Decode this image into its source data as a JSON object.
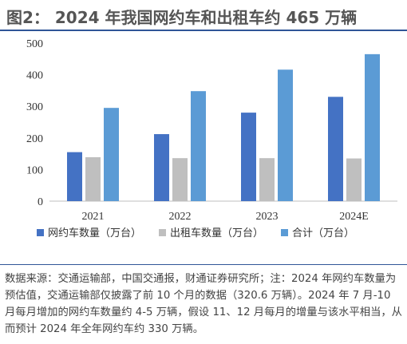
{
  "figure_title": "图2： 2024 年我国网约车和出租车约 465 万辆",
  "note": "数据来源：交通运输部，中国交通报，财通证券研究所；注：2024 年网约车数量为预估值，交通运输部仅披露了前 10 个月的数据（320.6 万辆）。2024 年 7 月-10 月每月增加的网约车数量约 4-5 万辆，假设 11、12 月每月的增量与该水平相当，从而预计 2024 年全年网约车约 330 万辆。",
  "colors": {
    "series1": "#4472c4",
    "series2": "#bfbfbf",
    "series3": "#5b9bd5",
    "title_rule": "#2f5597"
  },
  "chart_data": {
    "type": "bar",
    "title": "",
    "xlabel": "",
    "ylabel": "",
    "categories": [
      "2021",
      "2022",
      "2023",
      "2024E"
    ],
    "series": [
      {
        "name": "网约车数量（万台）",
        "values": [
          155,
          212,
          280,
          330
        ]
      },
      {
        "name": "出租车数量（万台）",
        "values": [
          139,
          136,
          136,
          135
        ]
      },
      {
        "name": "合计（万台）",
        "values": [
          295,
          348,
          416,
          465
        ]
      }
    ],
    "ylim": [
      0,
      500
    ],
    "yticks": [
      0,
      100,
      200,
      300,
      400,
      500
    ],
    "grid": false,
    "legend_position": "bottom"
  }
}
